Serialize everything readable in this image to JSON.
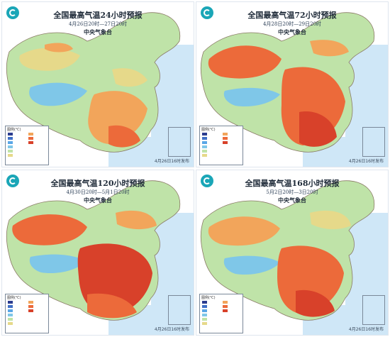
{
  "maps": [
    {
      "title": "全国最高气温24小时预报",
      "subtitle": "4月26日20时—27日20时",
      "org": "中央气象台",
      "stamp": "4月26日16时发布"
    },
    {
      "title": "全国最高气温72小时预报",
      "subtitle": "4月28日20时—29日20时",
      "org": "中央气象台",
      "stamp": "4月26日16时发布"
    },
    {
      "title": "全国最高气温120小时预报",
      "subtitle": "4月30日20时—5月1日20时",
      "org": "中央气象台",
      "stamp": "4月26日16时发布"
    },
    {
      "title": "全国最高气温168小时预报",
      "subtitle": "5月2日20时—3日20时",
      "org": "中央气象台",
      "stamp": "4月26日16时发布"
    }
  ],
  "legend_title": "图例(℃)",
  "colors": {
    "sea": "#cfe7f7",
    "cold": "#7fc7e8",
    "cool": "#bfe3a8",
    "mild": "#e6d98a",
    "warm": "#f2a55b",
    "hot": "#ec6a3a",
    "veryhot": "#d8412a"
  }
}
